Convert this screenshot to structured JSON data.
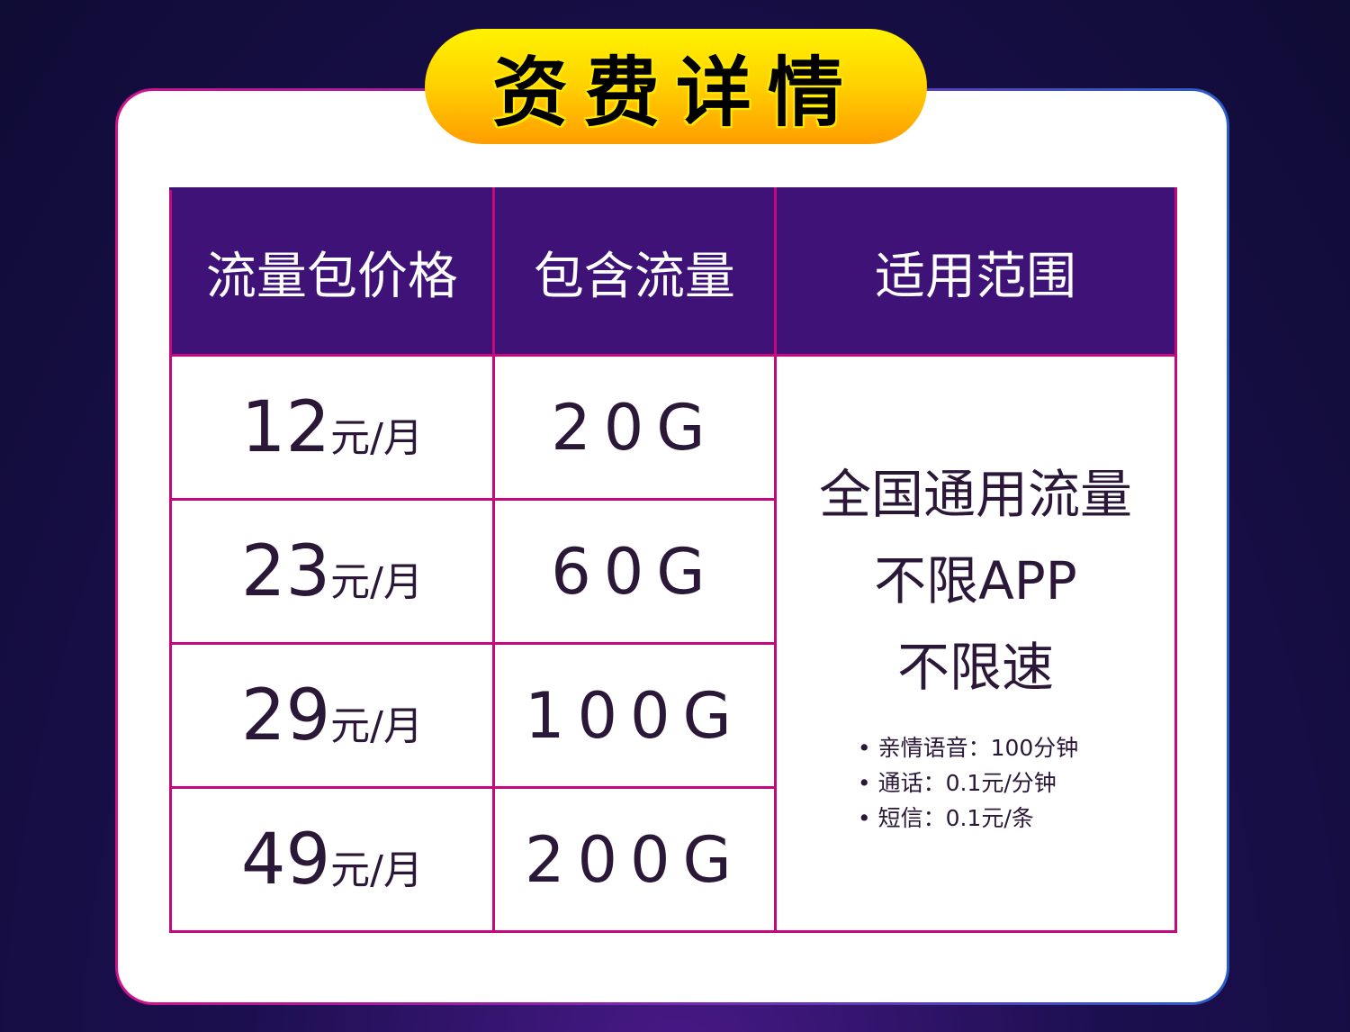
{
  "title": "资费详情",
  "table": {
    "headers": [
      "流量包价格",
      "包含流量",
      "适用范围"
    ],
    "rows": [
      {
        "price": "12",
        "unit": "元/月",
        "flow": "20G"
      },
      {
        "price": "23",
        "unit": "元/月",
        "flow": "60G"
      },
      {
        "price": "29",
        "unit": "元/月",
        "flow": "100G"
      },
      {
        "price": "49",
        "unit": "元/月",
        "flow": "200G"
      }
    ],
    "scope": {
      "lines": [
        "全国通用流量",
        "不限APP",
        "不限速"
      ],
      "notes": [
        "• 亲情语音：100分钟",
        "• 通话：0.1元/分钟",
        "• 短信：0.1元/条"
      ]
    }
  },
  "colors": {
    "header": "#3f1278",
    "border": "#c4087e",
    "banner": "#ffd400"
  }
}
